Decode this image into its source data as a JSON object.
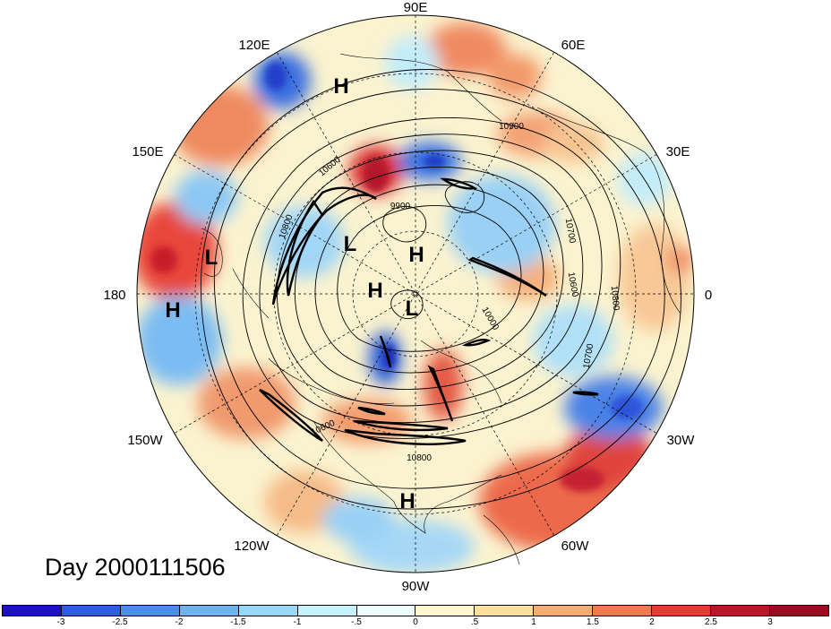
{
  "title": "Day 2000111506",
  "longitude_labels": [
    "90E",
    "60E",
    "30E",
    "0",
    "30W",
    "60W",
    "90W",
    "120W",
    "150W",
    "180",
    "150E",
    "120E"
  ],
  "pressure_centers": [
    "H",
    "L",
    "H",
    "H",
    "L",
    "L",
    "H",
    "H"
  ],
  "contour_labels": [
    "10900",
    "10800",
    "9900",
    "10600",
    "10700",
    "10600",
    "10800",
    "10000",
    "10700",
    "10600",
    "10800"
  ],
  "colorbar": {
    "labels": [
      "-3",
      "-2.5",
      "-2",
      "-1.5",
      "-1",
      "-.5",
      "0",
      ".5",
      "1",
      "1.5",
      "2",
      "2.5",
      "3"
    ],
    "colors": [
      "#1f10c8",
      "#2f5de0",
      "#4a8ee8",
      "#6fb2f0",
      "#9ad8f8",
      "#c8f0fb",
      "#eefcfc",
      "#fdf6d0",
      "#fbdf9c",
      "#f6ad74",
      "#ef7a50",
      "#e43c35",
      "#bc1428",
      "#9a0c20"
    ]
  }
}
